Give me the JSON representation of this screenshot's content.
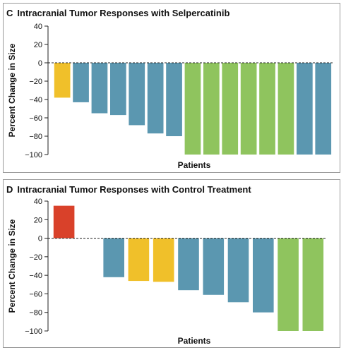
{
  "chart_data": [
    {
      "panel": "C",
      "type": "bar",
      "title": "Intracranial Tumor Responses with Selpercatinib",
      "xlabel": "Patients",
      "ylabel": "Percent Change in Size",
      "ylim": [
        -100,
        40
      ],
      "yticks": [
        "40",
        "20",
        "0",
        "−20",
        "−40",
        "−60",
        "−80",
        "−100"
      ],
      "ytick_values": [
        40,
        20,
        0,
        -20,
        -40,
        -60,
        -80,
        -100
      ],
      "values": [
        -38,
        -43,
        -55,
        -57,
        -68,
        -77,
        -80,
        -100,
        -100,
        -100,
        -100,
        -100,
        -100,
        -100,
        -100
      ],
      "bar_colors": [
        "#f0c02a",
        "#5b97b0",
        "#5b97b0",
        "#5b97b0",
        "#5b97b0",
        "#5b97b0",
        "#5b97b0",
        "#8fc45e",
        "#8fc45e",
        "#8fc45e",
        "#8fc45e",
        "#8fc45e",
        "#8fc45e",
        "#5b97b0",
        "#5b97b0"
      ]
    },
    {
      "panel": "D",
      "type": "bar",
      "title": "Intracranial Tumor Responses with Control Treatment",
      "xlabel": "Patients",
      "ylabel": "Percent Change in Size",
      "ylim": [
        -100,
        40
      ],
      "yticks": [
        "40",
        "20",
        "0",
        "−20",
        "−40",
        "−60",
        "−80",
        "−100"
      ],
      "ytick_values": [
        40,
        20,
        0,
        -20,
        -40,
        -60,
        -80,
        -100
      ],
      "values": [
        35,
        0,
        -42,
        -46,
        -47,
        -56,
        -61,
        -69,
        -80,
        -100,
        -100
      ],
      "bar_colors": [
        "#d9412a",
        "#5b97b0",
        "#5b97b0",
        "#f0c02a",
        "#f0c02a",
        "#5b97b0",
        "#5b97b0",
        "#5b97b0",
        "#5b97b0",
        "#8fc45e",
        "#8fc45e"
      ]
    }
  ],
  "colors": {
    "blue": "#5b97b0",
    "green": "#8fc45e",
    "yellow": "#f0c02a",
    "red": "#d9412a"
  }
}
